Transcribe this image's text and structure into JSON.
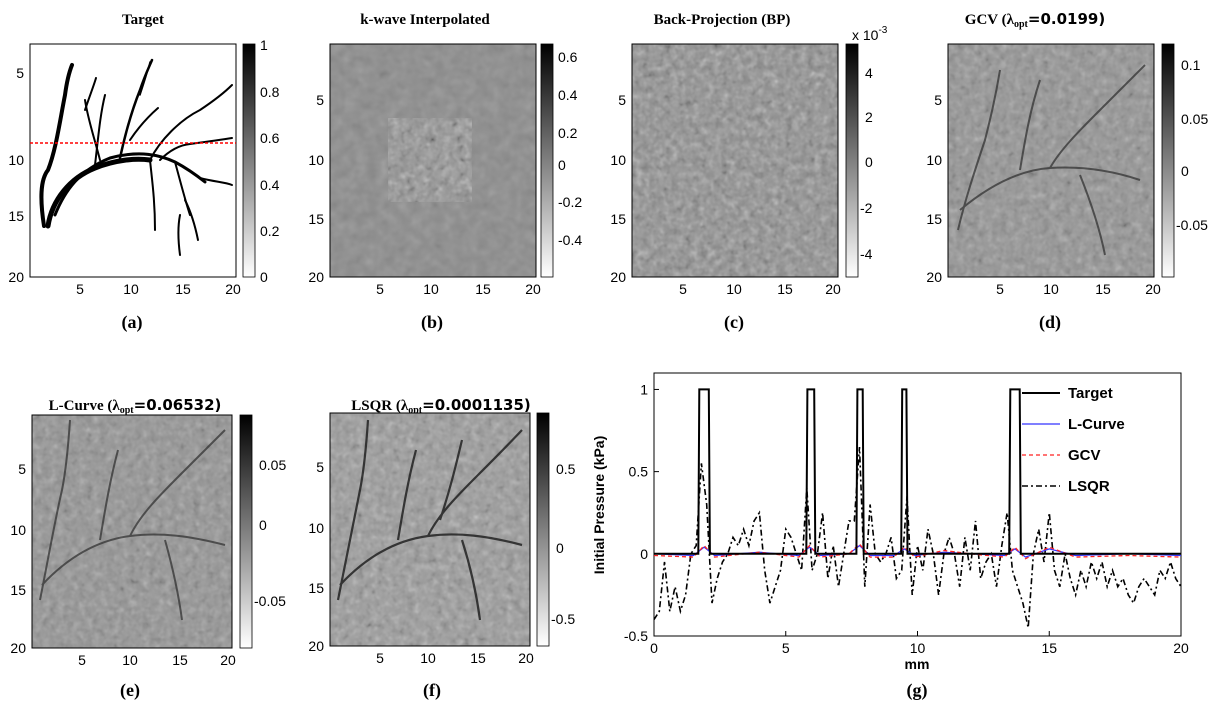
{
  "panels": [
    {
      "id": "a",
      "title": "Target",
      "label": "(a)",
      "x_ticks": [
        "5",
        "10",
        "15",
        "20"
      ],
      "y_ticks": [
        "5",
        "10",
        "15",
        "20"
      ],
      "colorbar_ticks": [
        "1",
        "0.8",
        "0.6",
        "0.4",
        "0.2",
        "0"
      ]
    },
    {
      "id": "b",
      "title": "k-wave Interpolated",
      "label": "(b)",
      "x_ticks": [
        "5",
        "10",
        "15",
        "20"
      ],
      "y_ticks": [
        "5",
        "10",
        "15",
        "20"
      ],
      "colorbar_ticks": [
        "0.6",
        "0.4",
        "0.2",
        "0",
        "-0.2",
        "-0.4"
      ]
    },
    {
      "id": "c",
      "title": "Back-Projection (BP)",
      "label": "(c)",
      "x_ticks": [
        "5",
        "10",
        "15",
        "20"
      ],
      "y_ticks": [
        "5",
        "10",
        "15",
        "20"
      ],
      "colorbar_ticks": [
        "4",
        "2",
        "0",
        "-2",
        "-4"
      ],
      "colorbar_exponent": "x 10",
      "colorbar_exponent_power": "-3"
    },
    {
      "id": "d",
      "title_prefix": "GCV (",
      "lambda": "λ",
      "lambda_sub": "opt",
      "title_value": "=0.0199)",
      "label": "(d)",
      "x_ticks": [
        "5",
        "10",
        "15",
        "20"
      ],
      "y_ticks": [
        "5",
        "10",
        "15",
        "20"
      ],
      "colorbar_ticks": [
        "0.1",
        "0.05",
        "0",
        "-0.05"
      ]
    },
    {
      "id": "e",
      "title_prefix": "L-Curve (",
      "lambda": "λ",
      "lambda_sub": "opt",
      "title_value": "=0.06532)",
      "label": "(e)",
      "x_ticks": [
        "5",
        "10",
        "15",
        "20"
      ],
      "y_ticks": [
        "5",
        "10",
        "15",
        "20"
      ],
      "colorbar_ticks": [
        "0.05",
        "0",
        "-0.05"
      ]
    },
    {
      "id": "f",
      "title_prefix": "LSQR (",
      "lambda": "λ",
      "lambda_sub": "opt",
      "title_value": "=0.0001135)",
      "label": "(f)",
      "x_ticks": [
        "5",
        "10",
        "15",
        "20"
      ],
      "y_ticks": [
        "5",
        "10",
        "15",
        "20"
      ],
      "colorbar_ticks": [
        "0.5",
        "0",
        "-0.5"
      ]
    }
  ],
  "chart_data": [
    {
      "type": "line",
      "label": "(g)",
      "title": "",
      "xlabel": "mm",
      "ylabel": "Initial Pressure (kPa)",
      "xlim": [
        0,
        20
      ],
      "ylim": [
        -0.5,
        1.1
      ],
      "x_ticks": [
        "0",
        "5",
        "10",
        "15",
        "20"
      ],
      "y_ticks": [
        "1",
        "0.5",
        "0",
        "-0.5"
      ],
      "legend_position": "top-right",
      "series": [
        {
          "name": "Target",
          "color": "#000000",
          "style": "solid",
          "x": [
            0,
            1.68,
            1.72,
            2.08,
            2.12,
            5.78,
            5.82,
            6.08,
            6.12,
            7.68,
            7.72,
            7.92,
            7.96,
            9.38,
            9.42,
            9.58,
            9.62,
            13.48,
            13.52,
            13.88,
            13.92,
            20
          ],
          "y": [
            0,
            0,
            1,
            1,
            0,
            0,
            1,
            1,
            0,
            0,
            1,
            1,
            0,
            0,
            1,
            1,
            0,
            0,
            1,
            1,
            0,
            0
          ]
        },
        {
          "name": "L-Curve",
          "color": "#3333ff",
          "style": "solid",
          "x": [
            0,
            1.5,
            1.9,
            2.3,
            4,
            5.5,
            5.9,
            6.3,
            7.4,
            7.8,
            8.2,
            9.1,
            9.5,
            9.9,
            11,
            12,
            13.3,
            13.7,
            14.1,
            15,
            16,
            18,
            20
          ],
          "y": [
            0,
            -0.01,
            0.04,
            -0.01,
            0.01,
            -0.01,
            0.04,
            -0.01,
            0,
            0.05,
            -0.01,
            -0.01,
            0.03,
            -0.01,
            0.01,
            0,
            -0.01,
            0.03,
            -0.02,
            0.03,
            -0.01,
            0,
            -0.01
          ]
        },
        {
          "name": "GCV",
          "color": "#ff2222",
          "style": "dashed",
          "x": [
            0,
            1.5,
            1.9,
            2.3,
            4,
            5.5,
            5.9,
            6.3,
            7.4,
            7.8,
            8.2,
            9.1,
            9.5,
            9.9,
            11,
            12,
            13.3,
            13.7,
            14.1,
            15,
            16,
            18,
            20
          ],
          "y": [
            -0.01,
            -0.02,
            0.05,
            -0.02,
            0.01,
            -0.02,
            0.05,
            -0.02,
            0,
            0.06,
            -0.02,
            -0.02,
            0.04,
            -0.02,
            0.02,
            0,
            -0.02,
            0.04,
            -0.03,
            0.04,
            -0.02,
            -0.01,
            -0.02
          ]
        },
        {
          "name": "LSQR",
          "color": "#000000",
          "style": "dashdot",
          "x": [
            0,
            0.2,
            0.4,
            0.6,
            0.8,
            1.0,
            1.2,
            1.4,
            1.6,
            1.8,
            2.0,
            2.2,
            2.4,
            2.6,
            2.8,
            3.0,
            3.2,
            3.4,
            3.6,
            3.8,
            4.0,
            4.2,
            4.4,
            4.6,
            4.8,
            5.0,
            5.2,
            5.4,
            5.6,
            5.8,
            6.0,
            6.2,
            6.4,
            6.6,
            6.8,
            7.0,
            7.2,
            7.4,
            7.6,
            7.8,
            8.0,
            8.2,
            8.4,
            8.6,
            8.8,
            9.0,
            9.2,
            9.4,
            9.6,
            9.8,
            10.0,
            10.2,
            10.4,
            10.6,
            10.8,
            11.0,
            11.2,
            11.4,
            11.6,
            11.8,
            12.0,
            12.2,
            12.4,
            12.6,
            12.8,
            13.0,
            13.2,
            13.4,
            13.6,
            13.8,
            14.0,
            14.2,
            14.4,
            14.6,
            14.8,
            15.0,
            15.2,
            15.4,
            15.6,
            15.8,
            16.0,
            16.2,
            16.4,
            16.6,
            16.8,
            17.0,
            17.2,
            17.4,
            17.6,
            17.8,
            18.0,
            18.2,
            18.4,
            18.6,
            18.8,
            19.0,
            19.2,
            19.4,
            19.6,
            19.8,
            20.0
          ],
          "y": [
            -0.4,
            -0.35,
            -0.05,
            -0.35,
            -0.2,
            -0.35,
            -0.25,
            0.0,
            0.05,
            0.55,
            0.3,
            -0.3,
            -0.15,
            -0.05,
            0.0,
            0.1,
            0.05,
            0.15,
            0.05,
            0.2,
            0.25,
            -0.1,
            -0.3,
            -0.2,
            -0.1,
            0.15,
            0.1,
            0.0,
            -0.1,
            0.4,
            -0.1,
            0.0,
            0.25,
            -0.15,
            0.05,
            -0.2,
            0.0,
            0.2,
            0.2,
            0.65,
            -0.2,
            0.3,
            0.0,
            -0.05,
            0.0,
            0.1,
            -0.15,
            -0.1,
            0.35,
            -0.25,
            0.05,
            -0.1,
            0.15,
            0.0,
            -0.25,
            0.0,
            0.1,
            0.0,
            -0.2,
            0.1,
            -0.1,
            0.2,
            -0.15,
            -0.05,
            0.0,
            -0.2,
            0.05,
            0.25,
            -0.1,
            -0.2,
            -0.3,
            -0.45,
            0.0,
            0.15,
            -0.05,
            0.25,
            -0.1,
            -0.2,
            0.0,
            -0.15,
            -0.25,
            -0.1,
            -0.2,
            -0.05,
            -0.15,
            -0.05,
            -0.2,
            -0.1,
            -0.2,
            -0.15,
            -0.25,
            -0.3,
            -0.2,
            -0.15,
            -0.2,
            -0.25,
            -0.1,
            -0.15,
            -0.05,
            -0.15,
            -0.2
          ]
        }
      ]
    }
  ]
}
